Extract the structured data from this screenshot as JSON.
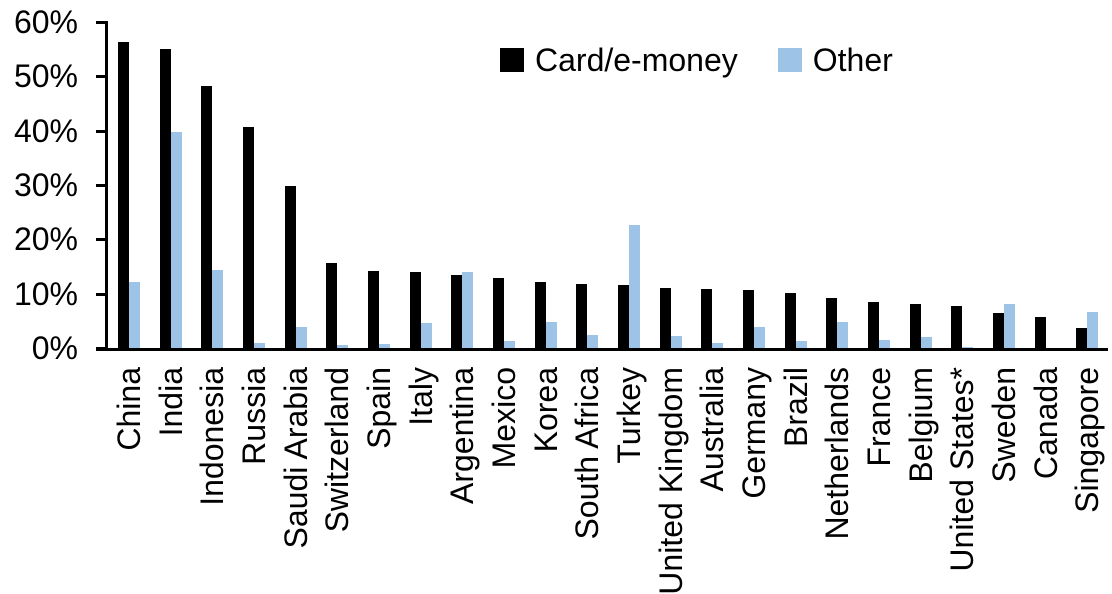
{
  "chart_data": {
    "type": "bar",
    "title": "",
    "xlabel": "",
    "ylabel": "",
    "ylim": [
      0,
      60
    ],
    "ytick_step": 10,
    "ytick_labels": [
      "0%",
      "10%",
      "20%",
      "30%",
      "40%",
      "50%",
      "60%"
    ],
    "grid": false,
    "legend_position": "top-center",
    "categories": [
      "China",
      "India",
      "Indonesia",
      "Russia",
      "Saudi Arabia",
      "Switzerland",
      "Spain",
      "Italy",
      "Argentina",
      "Mexico",
      "Korea",
      "South Africa",
      "Turkey",
      "United Kingdom",
      "Australia",
      "Germany",
      "Brazil",
      "Netherlands",
      "France",
      "Belgium",
      "United States*",
      "Sweden",
      "Canada",
      "Singapore"
    ],
    "series": [
      {
        "name": "Card/e-money",
        "color": "#000000",
        "values": [
          56.3,
          55.0,
          48.3,
          40.6,
          29.9,
          15.7,
          14.1,
          14.0,
          13.4,
          12.8,
          12.1,
          11.7,
          11.6,
          11.1,
          10.8,
          10.6,
          10.1,
          9.2,
          8.5,
          8.1,
          7.7,
          6.4,
          5.7,
          3.7
        ]
      },
      {
        "name": "Other",
        "color": "#9DC3E6",
        "values": [
          12.2,
          39.7,
          14.4,
          1.0,
          3.9,
          0.6,
          0.8,
          4.6,
          13.9,
          1.3,
          4.7,
          2.4,
          22.6,
          2.3,
          1.0,
          3.9,
          1.2,
          4.8,
          1.5,
          2.0,
          0.2,
          8.1,
          0.0,
          6.6
        ]
      }
    ]
  },
  "colors": {
    "axis": "#000000",
    "series_card": "#000000",
    "series_other": "#9DC3E6"
  }
}
